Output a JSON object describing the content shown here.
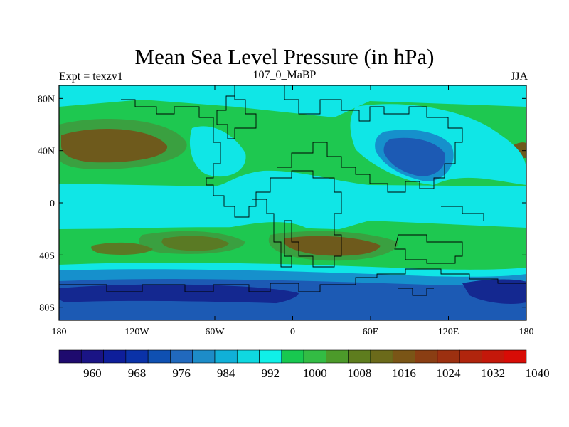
{
  "title": "Mean Sea Level Pressure (in hPa)",
  "subtitle_left": "Expt = texzv1",
  "subtitle_center": "107_0_MaBP",
  "subtitle_right": "JJA",
  "lat_ticks": [
    "80N",
    "40N",
    "0",
    "40S",
    "80S"
  ],
  "lat_values": [
    80,
    40,
    0,
    -40,
    -80
  ],
  "lon_ticks": [
    "180",
    "120W",
    "60W",
    "0",
    "60E",
    "120E",
    "180"
  ],
  "lon_values": [
    -180,
    -120,
    -60,
    0,
    60,
    120,
    180
  ],
  "colorbar": {
    "labels": [
      "960",
      "968",
      "976",
      "984",
      "992",
      "1000",
      "1008",
      "1016",
      "1024",
      "1032",
      "1040"
    ],
    "colors": [
      "#1e0a6e",
      "#1a1485",
      "#0e1e9a",
      "#0a32a8",
      "#0f50b2",
      "#2169bd",
      "#1d8cc8",
      "#10b0d8",
      "#0fd8e0",
      "#10f0e8",
      "#18c850",
      "#33bc44",
      "#4c9a2a",
      "#5e7d1e",
      "#6b6a1a",
      "#7a5516",
      "#8a3e13",
      "#9c3010",
      "#b0250d",
      "#c4180a",
      "#d80c06"
    ]
  },
  "map_colors": {
    "very_low": "#142890",
    "low": "#1c5ab4",
    "mid_low": "#1690cc",
    "cyan": "#10e6e6",
    "green": "#1ec850",
    "dark_green": "#3aa040",
    "olive": "#5a7a24",
    "brown": "#6e5a1c",
    "coast": "#000000"
  }
}
